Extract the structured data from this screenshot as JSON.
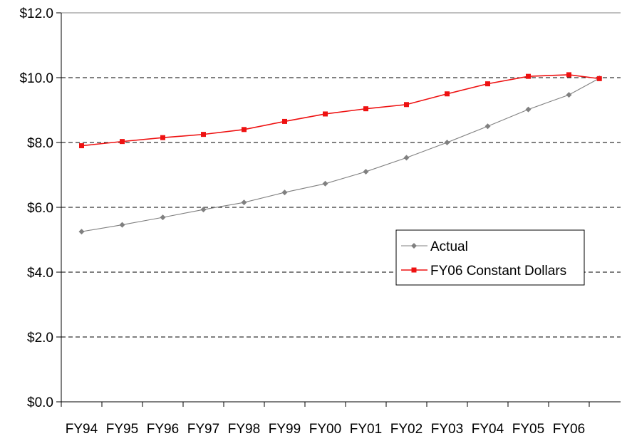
{
  "chart_data": {
    "type": "line",
    "title": "",
    "xlabel": "",
    "ylabel": "",
    "categories": [
      "FY94",
      "FY95",
      "FY96",
      "FY97",
      "FY98",
      "FY99",
      "FY00",
      "FY01",
      "FY02",
      "FY03",
      "FY04",
      "FY05",
      "FY06"
    ],
    "y_tick_labels": [
      "$0.0",
      "$2.0",
      "$4.0",
      "$6.0",
      "$8.0",
      "$10.0",
      "$12.0"
    ],
    "y_ticks": [
      0,
      2,
      4,
      6,
      8,
      10,
      12
    ],
    "ylim": [
      0,
      12
    ],
    "grid": "horizontal dashed at 2, 4, 6, 8, 10; solid at 12",
    "legend_position": "right-middle",
    "series": [
      {
        "name": "Actual",
        "color": "#808080",
        "marker": "diamond",
        "x": [
          0.5,
          1.5,
          2.5,
          3.5,
          4.5,
          5.5,
          6.5,
          7.5,
          8.5,
          9.5,
          10.5,
          11.5,
          12.5,
          13.25
        ],
        "values": [
          5.25,
          5.46,
          5.69,
          5.93,
          6.15,
          6.46,
          6.73,
          7.1,
          7.53,
          8.0,
          8.5,
          9.02,
          9.47,
          9.98
        ]
      },
      {
        "name": "FY06 Constant Dollars",
        "color": "#ee1111",
        "marker": "square",
        "x": [
          0.5,
          1.5,
          2.5,
          3.5,
          4.5,
          5.5,
          6.5,
          7.5,
          8.5,
          9.5,
          10.5,
          11.5,
          12.5,
          13.25
        ],
        "values": [
          7.9,
          8.03,
          8.15,
          8.25,
          8.4,
          8.65,
          8.88,
          9.04,
          9.17,
          9.5,
          9.81,
          10.04,
          10.09,
          9.97
        ]
      }
    ]
  }
}
